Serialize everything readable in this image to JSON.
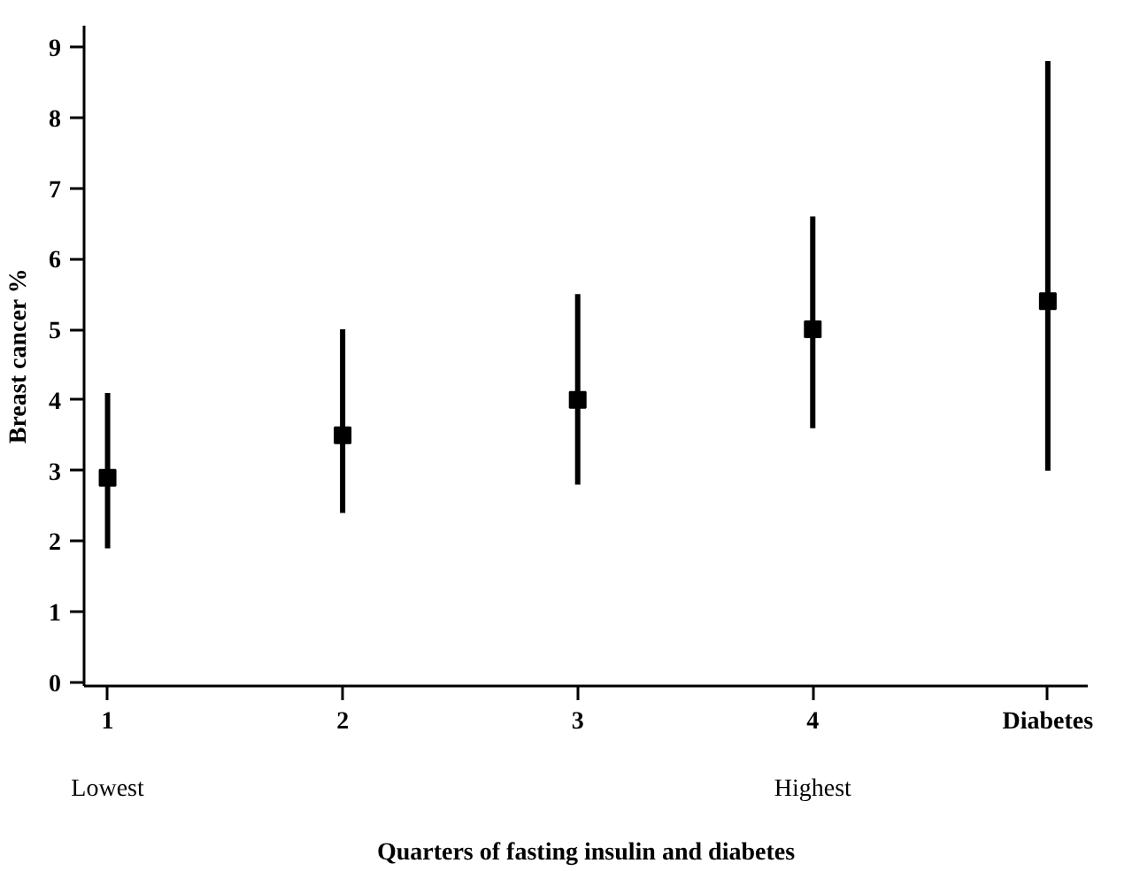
{
  "chart_data": {
    "type": "scatter",
    "xlabel": "Quarters of fasting insulin and diabetes",
    "ylabel": "Breast cancer %",
    "categories": [
      "1",
      "2",
      "3",
      "4",
      "Diabetes"
    ],
    "series": [
      {
        "color": "#000000",
        "values": [
          2.9,
          3.5,
          4.0,
          5.0,
          5.4
        ],
        "errors": [
          [
            1.9,
            4.1
          ],
          [
            2.4,
            5.0
          ],
          [
            2.8,
            5.5
          ],
          [
            3.6,
            6.6
          ],
          [
            3.0,
            8.8
          ]
        ]
      }
    ],
    "ylim": [
      -0.05,
      9.3
    ],
    "yticks": [
      0,
      1,
      2,
      3,
      4,
      5,
      6,
      7,
      8,
      9
    ],
    "annotations": [
      "Lowest",
      "Highest"
    ],
    "marker": "square",
    "grid": false
  }
}
